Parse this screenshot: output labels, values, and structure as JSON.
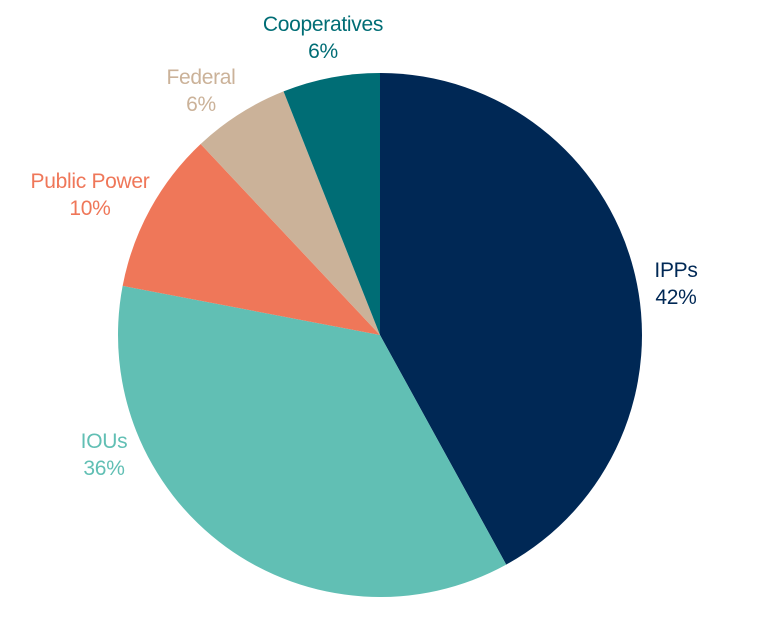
{
  "chart_data": {
    "type": "pie",
    "title": "",
    "start_angle_deg": 0,
    "direction": "clockwise",
    "slices": [
      {
        "name": "IPPs",
        "value": 42,
        "label": "42%",
        "color": "#002855"
      },
      {
        "name": "IOUs",
        "value": 36,
        "label": "36%",
        "color": "#61BFB4"
      },
      {
        "name": "Public Power",
        "value": 10,
        "label": "10%",
        "color": "#EF7759"
      },
      {
        "name": "Federal",
        "value": 6,
        "label": "6%",
        "color": "#CBB299"
      },
      {
        "name": "Cooperatives",
        "value": 6,
        "label": "6%",
        "color": "#006D75"
      }
    ],
    "legend": "none"
  }
}
